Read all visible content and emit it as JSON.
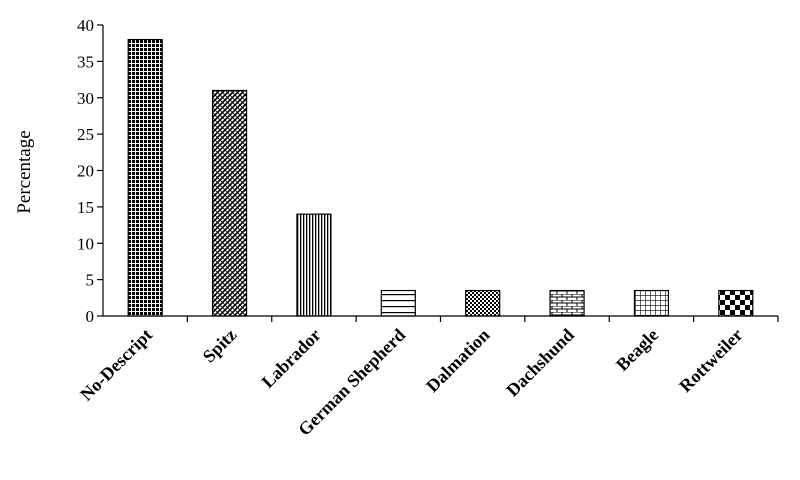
{
  "chart_data": {
    "type": "bar",
    "title": "",
    "xlabel": "",
    "ylabel": "Percentage",
    "categories": [
      "No-Descript",
      "Spitz",
      "Labrador",
      "German Shepherd",
      "Dalmation",
      "Dachshund",
      "Beagle",
      "Rottweiler"
    ],
    "values": [
      38,
      31,
      14,
      3.5,
      3.5,
      3.5,
      3.5,
      3.5
    ],
    "ylim": [
      0,
      40
    ],
    "yticks": [
      0,
      5,
      10,
      15,
      20,
      25,
      30,
      35,
      40
    ],
    "ytick_labels": [
      "0",
      "5",
      "10",
      "15",
      "20",
      "25",
      "30",
      "35",
      "40"
    ],
    "grid": false,
    "legend": "none",
    "bar_patterns": [
      "dense-dots",
      "diagonal-hatch",
      "vertical-lines",
      "horizontal-lines",
      "checker-small",
      "brick",
      "grid",
      "checker-large"
    ]
  }
}
